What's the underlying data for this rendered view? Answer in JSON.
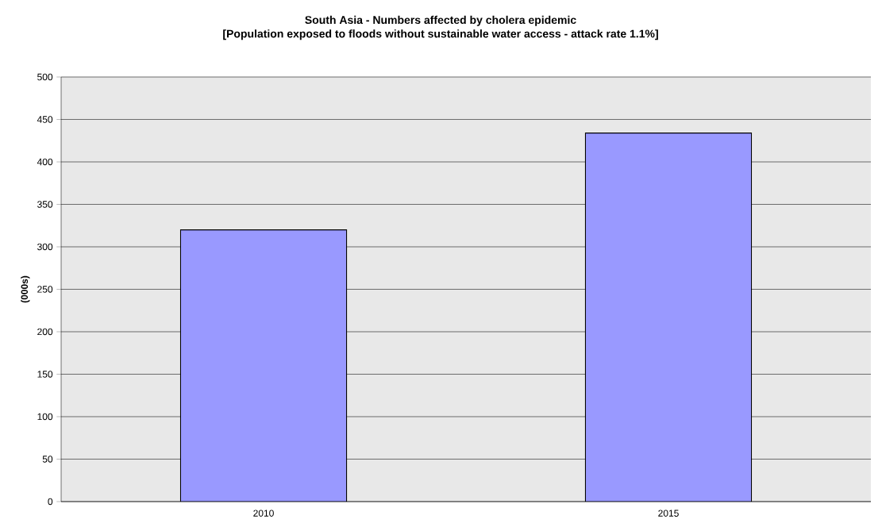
{
  "chart_data": {
    "type": "bar",
    "title": "South Asia - Numbers affected by cholera epidemic",
    "subtitle": "[Population exposed to floods without sustainable water access - attack rate 1.1%]",
    "ylabel": "(000s)",
    "categories": [
      "2010",
      "2015"
    ],
    "values": [
      320,
      434
    ],
    "color": "#9999ff",
    "ylim": [
      0,
      500
    ],
    "yticks": [
      0,
      50,
      100,
      150,
      200,
      250,
      300,
      350,
      400,
      450,
      500
    ],
    "grid": "y"
  }
}
